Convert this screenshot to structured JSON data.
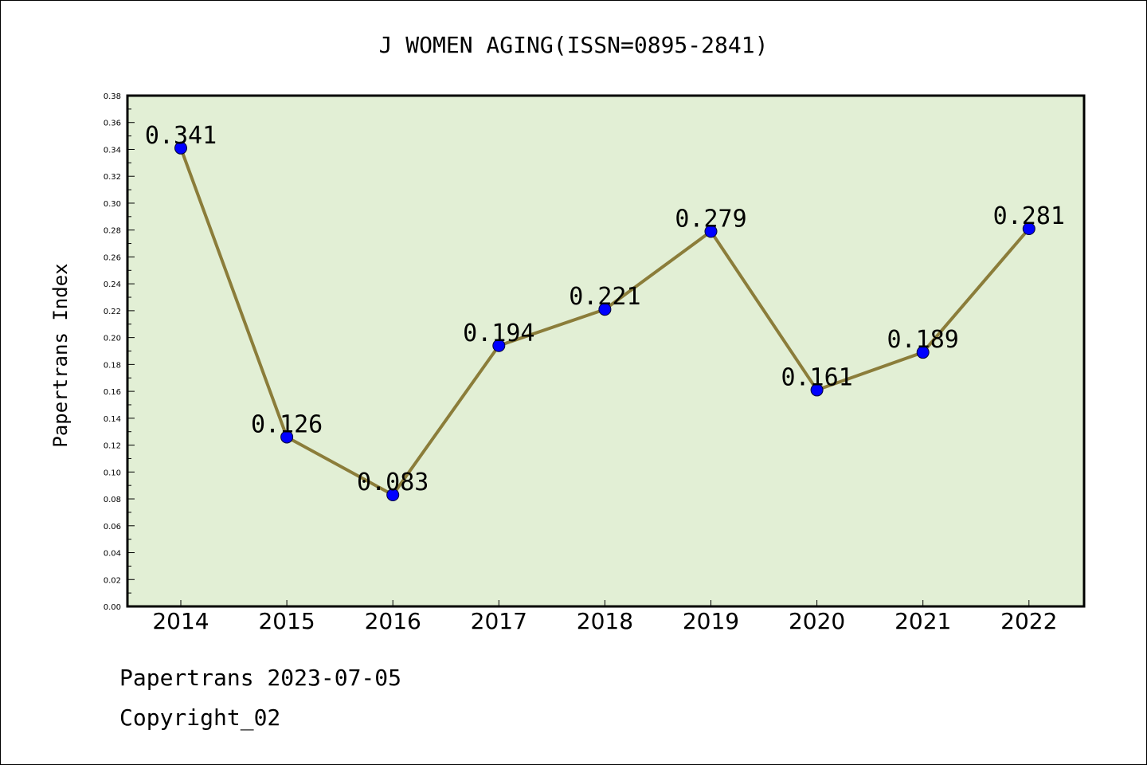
{
  "chart_data": {
    "type": "line",
    "title": "J WOMEN AGING(ISSN=0895-2841)",
    "xlabel": "",
    "ylabel": "Papertrans Index",
    "categories": [
      "2014",
      "2015",
      "2016",
      "2017",
      "2018",
      "2019",
      "2020",
      "2021",
      "2022"
    ],
    "series": [
      {
        "values": [
          0.341,
          0.126,
          0.083,
          0.194,
          0.221,
          0.279,
          0.161,
          0.189,
          0.281
        ],
        "labels": [
          "0.341",
          "0.126",
          "0.083",
          "0.194",
          "0.221",
          "0.279",
          "0.161",
          "0.189",
          "0.281"
        ]
      }
    ],
    "ylim": [
      0,
      0.38
    ],
    "yticks": [
      "0.00",
      "0.02",
      "0.04",
      "0.06",
      "0.08",
      "0.10",
      "0.12",
      "0.14",
      "0.16",
      "0.18",
      "0.20",
      "0.22",
      "0.24",
      "0.26",
      "0.28",
      "0.30",
      "0.32",
      "0.34",
      "0.36",
      "0.38"
    ],
    "grid": false,
    "legend": "none",
    "colors": {
      "line": "#8b7d3a",
      "marker": "#0000ff",
      "plot_background": "#e2efd5",
      "frame": "#000000"
    }
  },
  "footer": {
    "date_line": "Papertrans 2023-07-05",
    "copyright_line": "Copyright_02"
  }
}
